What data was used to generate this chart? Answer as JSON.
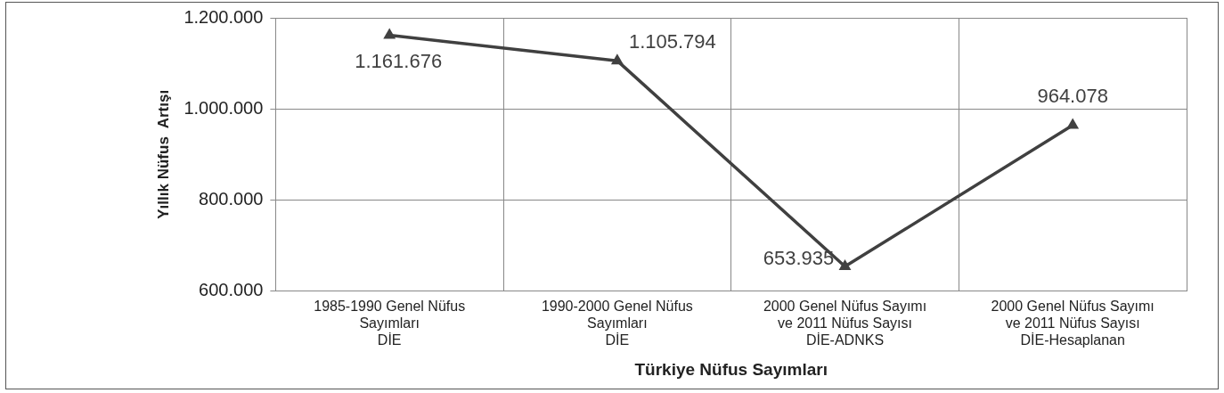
{
  "chart_data": {
    "type": "line",
    "xlabel": "Türkiye Nüfus Sayımları",
    "ylabel": "Yıllık Nüfus  Artışı",
    "categories": [
      "1985-1990 Genel Nüfus\nSayımları\nDİE",
      "1990-2000 Genel Nüfus\nSayımları\nDİE",
      "2000 Genel Nüfus Sayımı\nve 2011 Nüfus Sayısı\nDİE-ADNKS",
      "2000 Genel Nüfus Sayımı\nve 2011 Nüfus Sayısı\nDİE-Hesaplanan"
    ],
    "series": [
      {
        "color": "#404040",
        "values": [
          1161676,
          1105794,
          653935,
          964078
        ],
        "value_labels": [
          "1.161.676",
          "1.105.794",
          "653.935",
          "964.078"
        ]
      }
    ],
    "ylim": [
      600000,
      1200000
    ],
    "yticks": [
      {
        "value": 600000,
        "label": "600.000"
      },
      {
        "value": 800000,
        "label": "800.000"
      },
      {
        "value": 1000000,
        "label": "1.000.000"
      },
      {
        "value": 1200000,
        "label": "1.200.000"
      }
    ],
    "grid": true,
    "legend": false,
    "marker": "triangle",
    "line_style": "solid"
  }
}
